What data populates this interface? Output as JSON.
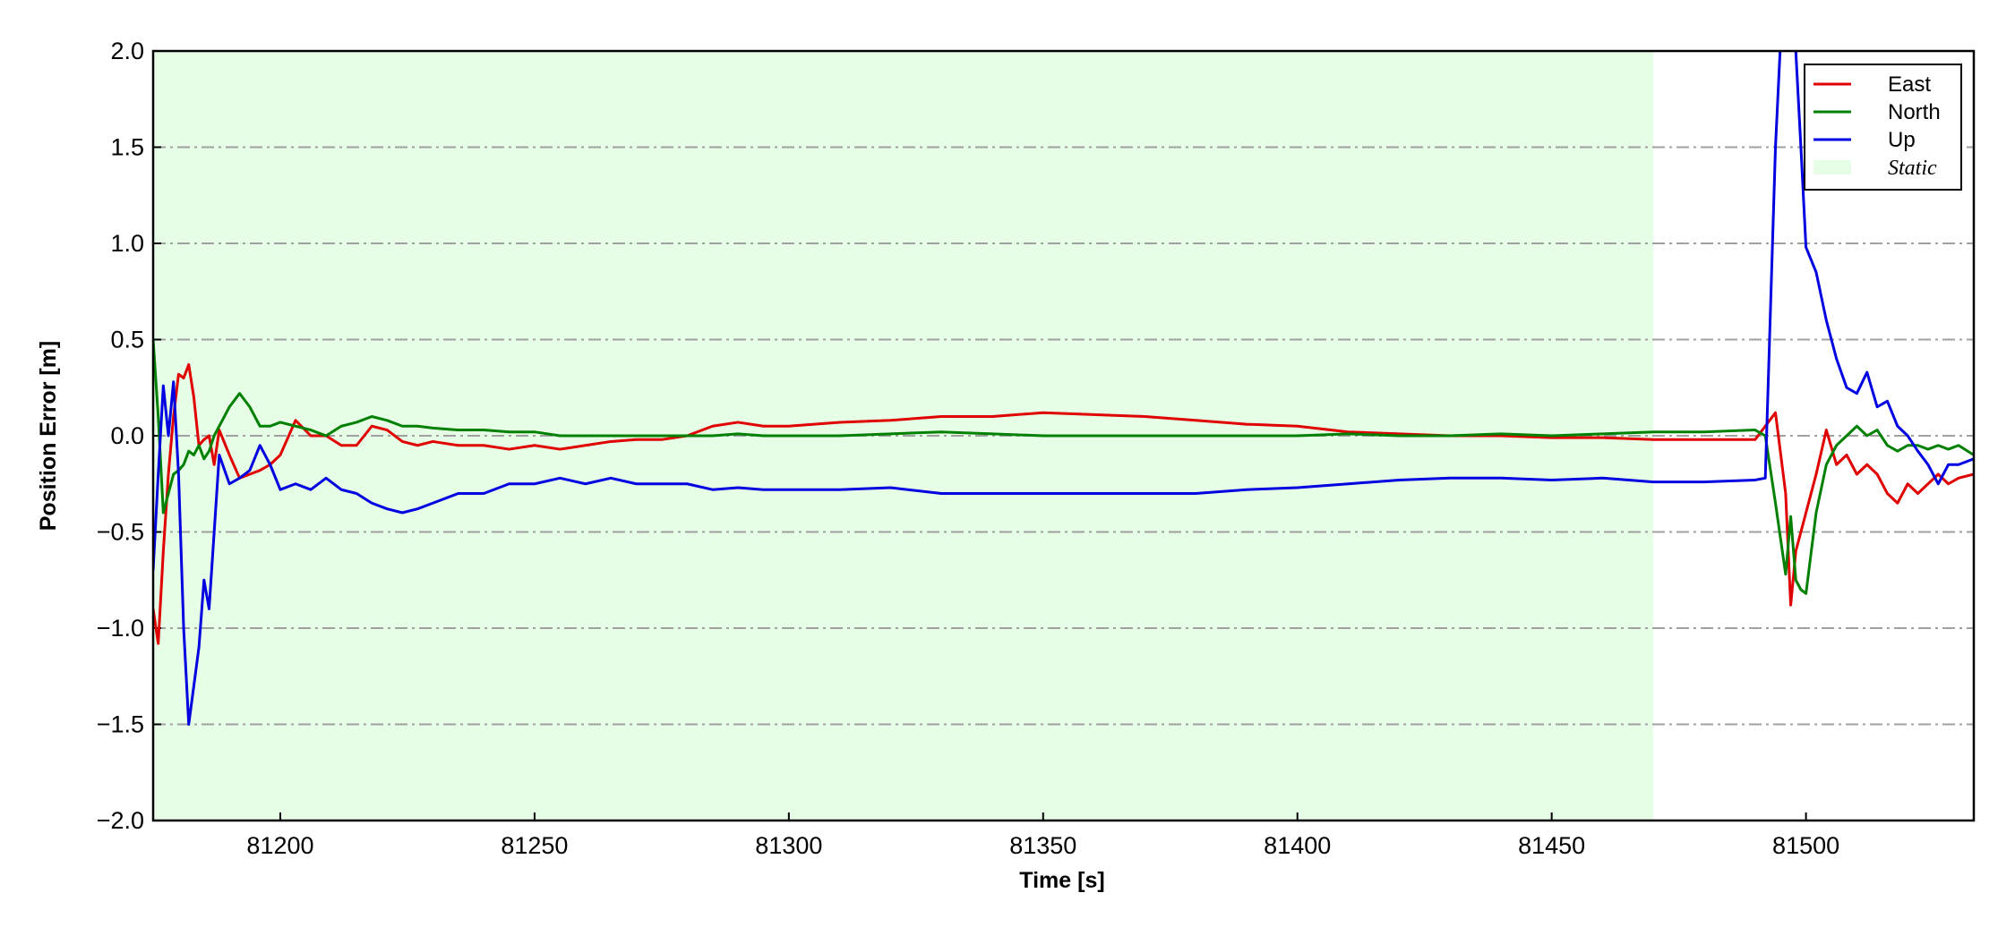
{
  "chart_data": {
    "type": "line",
    "xlabel": "Time [s]",
    "ylabel": "Position Error [m]",
    "xlim": [
      81175,
      81533
    ],
    "ylim": [
      -2.0,
      2.0
    ],
    "xticks": [
      81200,
      81250,
      81300,
      81350,
      81400,
      81450,
      81500
    ],
    "yticks": [
      {
        "value": -2.0,
        "label": "−2.0"
      },
      {
        "value": -1.5,
        "label": "−1.5"
      },
      {
        "value": -1.0,
        "label": "−1.0"
      },
      {
        "value": -0.5,
        "label": "−0.5"
      },
      {
        "value": 0.0,
        "label": "0.0"
      },
      {
        "value": 0.5,
        "label": "0.5"
      },
      {
        "value": 1.0,
        "label": "1.0"
      },
      {
        "value": 1.5,
        "label": "1.5"
      },
      {
        "value": 2.0,
        "label": "2.0"
      }
    ],
    "grid": true,
    "legend": "upper right",
    "spans": [
      {
        "label": "Static",
        "start": 81175,
        "end": 81470,
        "color": "#e6fde6"
      }
    ],
    "x": [
      81175,
      81176,
      81177,
      81178,
      81179,
      81180,
      81181,
      81182,
      81183,
      81184,
      81185,
      81186,
      81187,
      81188,
      81190,
      81192,
      81194,
      81196,
      81198,
      81200,
      81203,
      81206,
      81209,
      81212,
      81215,
      81218,
      81221,
      81224,
      81227,
      81230,
      81235,
      81240,
      81245,
      81250,
      81255,
      81260,
      81265,
      81270,
      81275,
      81280,
      81285,
      81290,
      81295,
      81300,
      81310,
      81320,
      81330,
      81340,
      81350,
      81360,
      81370,
      81380,
      81390,
      81400,
      81410,
      81420,
      81430,
      81440,
      81450,
      81460,
      81470,
      81480,
      81490,
      81492,
      81494,
      81496,
      81497,
      81498,
      81499,
      81500,
      81502,
      81504,
      81506,
      81508,
      81510,
      81512,
      81514,
      81516,
      81518,
      81520,
      81522,
      81524,
      81526,
      81528,
      81530,
      81533
    ],
    "series": [
      {
        "name": "East",
        "color": "#e00000",
        "values": [
          -0.9,
          -1.08,
          -0.6,
          -0.2,
          0.1,
          0.32,
          0.3,
          0.37,
          0.2,
          -0.05,
          -0.02,
          0.0,
          -0.15,
          0.03,
          -0.1,
          -0.22,
          -0.2,
          -0.18,
          -0.15,
          -0.1,
          0.08,
          0.0,
          0.0,
          -0.05,
          -0.05,
          0.05,
          0.03,
          -0.03,
          -0.05,
          -0.03,
          -0.05,
          -0.05,
          -0.07,
          -0.05,
          -0.07,
          -0.05,
          -0.03,
          -0.02,
          -0.02,
          0.0,
          0.05,
          0.07,
          0.05,
          0.05,
          0.07,
          0.08,
          0.1,
          0.1,
          0.12,
          0.11,
          0.1,
          0.08,
          0.06,
          0.05,
          0.02,
          0.01,
          0.0,
          0.0,
          -0.01,
          -0.01,
          -0.02,
          -0.02,
          -0.02,
          0.05,
          0.12,
          -0.3,
          -0.88,
          -0.6,
          -0.5,
          -0.4,
          -0.2,
          0.03,
          -0.15,
          -0.1,
          -0.2,
          -0.15,
          -0.2,
          -0.3,
          -0.35,
          -0.25,
          -0.3,
          -0.25,
          -0.2,
          -0.25,
          -0.22,
          -0.2
        ]
      },
      {
        "name": "North",
        "color": "#008000",
        "values": [
          0.5,
          0.1,
          -0.4,
          -0.3,
          -0.2,
          -0.18,
          -0.15,
          -0.08,
          -0.1,
          -0.05,
          -0.12,
          -0.08,
          0.0,
          0.05,
          0.15,
          0.22,
          0.15,
          0.05,
          0.05,
          0.07,
          0.05,
          0.03,
          0.0,
          0.05,
          0.07,
          0.1,
          0.08,
          0.05,
          0.05,
          0.04,
          0.03,
          0.03,
          0.02,
          0.02,
          0.0,
          0.0,
          0.0,
          0.0,
          0.0,
          0.0,
          0.0,
          0.01,
          0.0,
          0.0,
          0.0,
          0.01,
          0.02,
          0.01,
          0.0,
          0.0,
          0.0,
          0.0,
          0.0,
          0.0,
          0.01,
          0.0,
          0.0,
          0.01,
          0.0,
          0.01,
          0.02,
          0.02,
          0.03,
          0.0,
          -0.35,
          -0.72,
          -0.42,
          -0.75,
          -0.8,
          -0.82,
          -0.4,
          -0.15,
          -0.05,
          0.0,
          0.05,
          0.0,
          0.03,
          -0.05,
          -0.08,
          -0.05,
          -0.05,
          -0.07,
          -0.05,
          -0.07,
          -0.05,
          -0.1
        ]
      },
      {
        "name": "Up",
        "color": "#0000e0",
        "values": [
          -0.7,
          -0.2,
          0.26,
          0.0,
          0.28,
          -0.2,
          -1.0,
          -1.5,
          -1.3,
          -1.1,
          -0.75,
          -0.9,
          -0.5,
          -0.1,
          -0.25,
          -0.22,
          -0.18,
          -0.05,
          -0.15,
          -0.28,
          -0.25,
          -0.28,
          -0.22,
          -0.28,
          -0.3,
          -0.35,
          -0.38,
          -0.4,
          -0.38,
          -0.35,
          -0.3,
          -0.3,
          -0.25,
          -0.25,
          -0.22,
          -0.25,
          -0.22,
          -0.25,
          -0.25,
          -0.25,
          -0.28,
          -0.27,
          -0.28,
          -0.28,
          -0.28,
          -0.27,
          -0.3,
          -0.3,
          -0.3,
          -0.3,
          -0.3,
          -0.3,
          -0.28,
          -0.27,
          -0.25,
          -0.23,
          -0.22,
          -0.22,
          -0.23,
          -0.22,
          -0.24,
          -0.24,
          -0.23,
          -0.22,
          1.5,
          2.6,
          2.5,
          2.0,
          1.5,
          0.98,
          0.85,
          0.6,
          0.4,
          0.25,
          0.22,
          0.33,
          0.15,
          0.18,
          0.05,
          0.0,
          -0.08,
          -0.15,
          -0.25,
          -0.15,
          -0.15,
          -0.12
        ]
      }
    ]
  }
}
